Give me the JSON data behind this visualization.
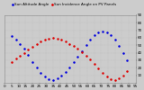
{
  "title": "",
  "blue_label": "Sun Altitude Angle",
  "red_label": "Sun Incidence Angle on PV Panels",
  "background_color": "#cccccc",
  "blue_color": "#0000dd",
  "red_color": "#dd0000",
  "xlim_min": 0,
  "xlim_max": 95,
  "ylim_min": 0,
  "ylim_max": 90,
  "marker_size": 0.8,
  "legend_fontsize": 3.0,
  "tick_fontsize": 3.0,
  "grid_color": "#aaaaaa",
  "grid_alpha": 0.7,
  "ytick_right": true,
  "yticks": [
    10,
    20,
    30,
    40,
    50,
    60,
    70,
    80,
    90
  ],
  "xtick_step": 5,
  "blue_x": [
    5,
    8,
    11,
    14,
    17,
    20,
    23,
    26,
    29,
    32,
    35,
    38,
    41,
    44,
    47,
    50,
    53,
    56,
    59,
    62,
    65,
    68,
    71,
    74,
    77,
    80,
    83,
    86,
    89
  ],
  "blue_y": [
    62,
    58,
    52,
    45,
    37,
    28,
    20,
    13,
    8,
    5,
    4,
    6,
    9,
    14,
    20,
    27,
    35,
    42,
    50,
    57,
    63,
    67,
    68,
    67,
    63,
    57,
    49,
    40,
    30
  ],
  "red_x": [
    5,
    8,
    11,
    14,
    17,
    20,
    23,
    26,
    29,
    32,
    35,
    38,
    41,
    44,
    47,
    50,
    53,
    56,
    59,
    62,
    65,
    68,
    71,
    74,
    77,
    80,
    83,
    86,
    89
  ],
  "red_y": [
    28,
    32,
    36,
    40,
    44,
    48,
    52,
    55,
    57,
    59,
    60,
    59,
    57,
    55,
    52,
    49,
    45,
    41,
    36,
    31,
    25,
    19,
    13,
    8,
    5,
    4,
    6,
    10,
    16
  ]
}
